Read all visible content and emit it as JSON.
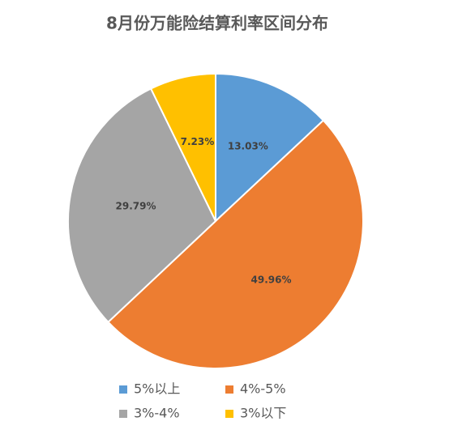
{
  "chart_data": {
    "type": "pie",
    "title": "8月份万能险结算利率区间分布",
    "categories": [
      "5%以上",
      "4%-5%",
      "3%-4%",
      "3%以下"
    ],
    "values": [
      13.03,
      49.96,
      29.79,
      7.23
    ],
    "value_labels": [
      "13.03%",
      "49.96%",
      "29.79%",
      "7.23%"
    ],
    "colors": [
      "#5b9bd5",
      "#ed7d31",
      "#a5a5a5",
      "#ffc000"
    ]
  }
}
